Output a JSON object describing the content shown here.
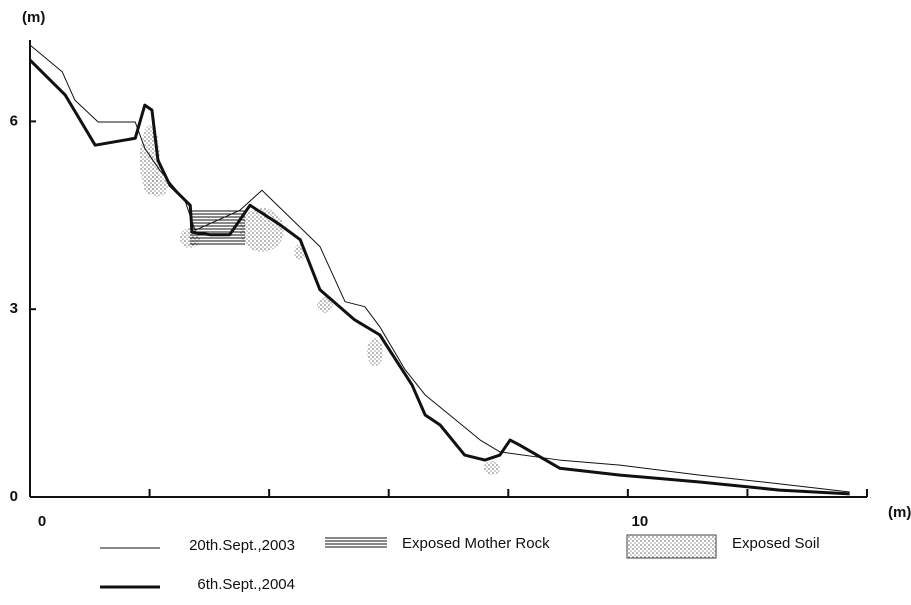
{
  "chart_data": {
    "type": "line",
    "x_unit_label": "(m)",
    "y_unit_label": "(m)",
    "xlim": [
      0,
      14
    ],
    "xticks": [
      0,
      10
    ],
    "xminor_ticks": [
      2,
      4,
      6,
      8,
      12,
      14
    ],
    "ylim": [
      0,
      7.3
    ],
    "yticks": [
      0,
      3,
      6
    ],
    "series": [
      {
        "name": "20th.Sept.,2003",
        "color": "#111111",
        "width": 1,
        "x": [
          0,
          0.54,
          0.75,
          1.14,
          1.76,
          1.92,
          2.17,
          2.59,
          2.76,
          3.51,
          3.88,
          4.85,
          5.27,
          5.6,
          5.85,
          6.27,
          6.61,
          7.02,
          7.53,
          7.86,
          8.86,
          9.87,
          11.2,
          12.54,
          13.71
        ],
        "values": [
          7.22,
          6.79,
          6.34,
          5.99,
          5.99,
          5.57,
          5.22,
          4.74,
          4.26,
          4.58,
          4.9,
          4.0,
          3.12,
          3.04,
          2.72,
          2.04,
          1.63,
          1.31,
          0.91,
          0.72,
          0.59,
          0.51,
          0.35,
          0.21,
          0.08
        ]
      },
      {
        "name": "6th.Sept.,2004",
        "color": "#111111",
        "width": 3,
        "x": [
          0,
          0.59,
          1.09,
          1.76,
          1.92,
          2.04,
          2.14,
          2.34,
          2.68,
          2.71,
          3.01,
          3.34,
          3.68,
          4.18,
          4.52,
          4.85,
          5.43,
          5.85,
          6.39,
          6.61,
          6.86,
          7.27,
          7.61,
          7.86,
          8.03,
          8.19,
          8.86,
          9.87,
          11.2,
          12.54,
          13.71
        ],
        "values": [
          6.98,
          6.42,
          5.62,
          5.73,
          6.26,
          6.18,
          5.38,
          4.98,
          4.66,
          4.23,
          4.19,
          4.19,
          4.66,
          4.35,
          4.11,
          3.31,
          2.83,
          2.59,
          1.79,
          1.31,
          1.15,
          0.67,
          0.59,
          0.67,
          0.91,
          0.83,
          0.46,
          0.35,
          0.24,
          0.11,
          0.05
        ]
      }
    ],
    "legend_extra": [
      "Exposed Mother Rock",
      "Exposed Soil"
    ]
  }
}
